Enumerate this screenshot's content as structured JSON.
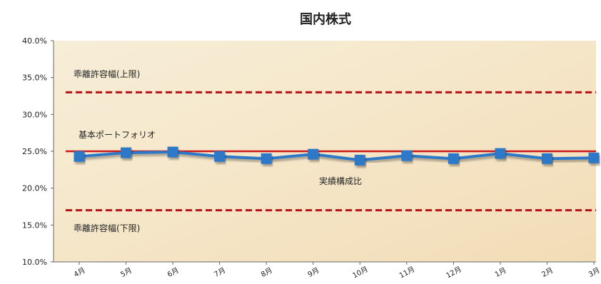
{
  "chart_data": {
    "type": "line",
    "title": "国内株式",
    "xlabel": "",
    "ylabel": "",
    "ylim": [
      0.1,
      0.4
    ],
    "y_ticks": [
      "10.0%",
      "15.0%",
      "20.0%",
      "25.0%",
      "30.0%",
      "35.0%",
      "40.0%"
    ],
    "y_tick_values": [
      0.1,
      0.15,
      0.2,
      0.25,
      0.3,
      0.35,
      0.4
    ],
    "categories": [
      "4月",
      "5月",
      "6月",
      "7月",
      "8月",
      "9月",
      "10月",
      "11月",
      "12月",
      "1月",
      "2月",
      "3月"
    ],
    "series": [
      {
        "name": "実績構成比",
        "values": [
          0.243,
          0.248,
          0.249,
          0.243,
          0.24,
          0.246,
          0.238,
          0.244,
          0.24,
          0.247,
          0.24,
          0.241
        ],
        "color": "#2f78c8",
        "marker": "square"
      },
      {
        "name": "基本ポートフォリオ",
        "values": [
          0.25,
          0.25,
          0.25,
          0.25,
          0.25,
          0.25,
          0.25,
          0.25,
          0.25,
          0.25,
          0.25,
          0.25
        ],
        "color": "#cc1a1a",
        "style": "solid"
      },
      {
        "name": "乖離許容幅(上限)",
        "values": [
          0.33,
          0.33,
          0.33,
          0.33,
          0.33,
          0.33,
          0.33,
          0.33,
          0.33,
          0.33,
          0.33,
          0.33
        ],
        "color": "#b01414",
        "style": "dashed"
      },
      {
        "name": "乖離許容幅(下限)",
        "values": [
          0.17,
          0.17,
          0.17,
          0.17,
          0.17,
          0.17,
          0.17,
          0.17,
          0.17,
          0.17,
          0.17,
          0.17
        ],
        "color": "#b01414",
        "style": "dashed"
      }
    ],
    "annotations": {
      "upper": "乖離許容幅(上限)",
      "base": "基本ポートフォリオ",
      "actual": "実績構成比",
      "lower": "乖離許容幅(下限)"
    },
    "grid": false,
    "legend": "none",
    "plot_background": "#f7ecd3"
  }
}
